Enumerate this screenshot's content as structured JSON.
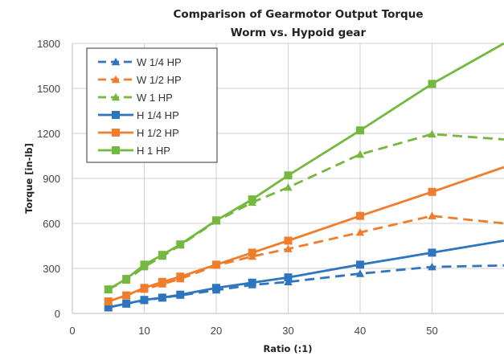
{
  "chart_data": {
    "type": "line",
    "title": "Comparison of Gearmotor Output Torque",
    "subtitle": "Worm vs. Hypoid gear",
    "xlabel": "Ratio (:1)",
    "ylabel": "Torque [in-lb]",
    "xlim": [
      0,
      60
    ],
    "ylim": [
      0,
      1800
    ],
    "xticks": [
      "0",
      "10",
      "20",
      "30",
      "40",
      "50"
    ],
    "yticks": [
      "0",
      "300",
      "600",
      "900",
      "1200",
      "1500",
      "1800"
    ],
    "grid": true,
    "legend_position": "top-left",
    "series": [
      {
        "name": "W 1/4 HP",
        "color": "#2e75c0",
        "marker": "triangle",
        "line": "dashed",
        "x": [
          5,
          7.5,
          10,
          12.5,
          15,
          20,
          25,
          30,
          40,
          50,
          60
        ],
        "y": [
          40,
          65,
          85,
          105,
          120,
          155,
          190,
          210,
          265,
          310,
          320
        ]
      },
      {
        "name": "W 1/2 HP",
        "color": "#ef7d2c",
        "marker": "triangle",
        "line": "dashed",
        "x": [
          5,
          7.5,
          10,
          12.5,
          15,
          20,
          25,
          30,
          40,
          50,
          60
        ],
        "y": [
          80,
          120,
          160,
          195,
          230,
          320,
          380,
          430,
          540,
          650,
          600
        ]
      },
      {
        "name": "W 1 HP",
        "color": "#74b83f",
        "marker": "triangle",
        "line": "dashed",
        "x": [
          5,
          7.5,
          10,
          12.5,
          15,
          20,
          25,
          30,
          40,
          50,
          60
        ],
        "y": [
          160,
          220,
          310,
          380,
          455,
          615,
          740,
          840,
          1060,
          1195,
          1160
        ]
      },
      {
        "name": "H 1/4 HP",
        "color": "#2e75c0",
        "marker": "square",
        "line": "solid",
        "x": [
          5,
          7.5,
          10,
          12.5,
          15,
          20,
          25,
          30,
          40,
          50,
          60
        ],
        "y": [
          40,
          65,
          90,
          105,
          125,
          170,
          205,
          240,
          325,
          405,
          485
        ]
      },
      {
        "name": "H 1/2 HP",
        "color": "#ef7d2c",
        "marker": "square",
        "line": "solid",
        "x": [
          5,
          7.5,
          10,
          12.5,
          15,
          20,
          25,
          30,
          40,
          50,
          60
        ],
        "y": [
          80,
          120,
          170,
          210,
          245,
          325,
          405,
          485,
          650,
          810,
          975
        ]
      },
      {
        "name": "H 1 HP",
        "color": "#74b83f",
        "marker": "square",
        "line": "solid",
        "x": [
          5,
          7.5,
          10,
          12.5,
          15,
          20,
          25,
          30,
          40,
          50,
          60
        ],
        "y": [
          160,
          230,
          325,
          390,
          460,
          620,
          760,
          920,
          1220,
          1530,
          1800
        ]
      }
    ]
  }
}
